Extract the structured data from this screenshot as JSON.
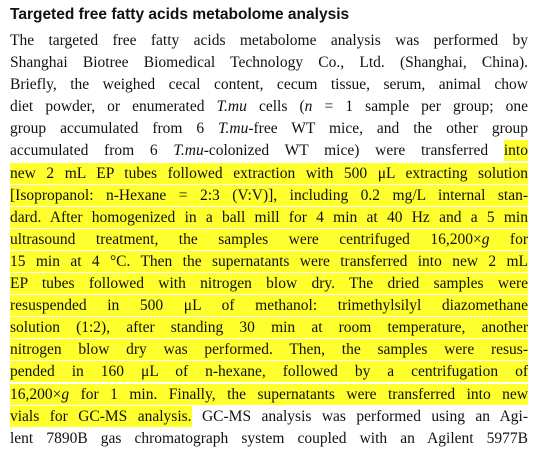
{
  "heading": "Targeted free fatty acids metabolome analysis",
  "lines": [
    [
      {
        "text": "The targeted free fatty acids metabolome analysis was performed by",
        "style": "plain"
      }
    ],
    [
      {
        "text": "Shanghai Biotree Biomedical Technology Co., Ltd. (Shanghai, China).",
        "style": "plain"
      }
    ],
    [
      {
        "text": "Briefly, the weighed cecal content, cecum tissue, serum, animal chow",
        "style": "plain"
      }
    ],
    [
      {
        "text": "diet powder, or enumerated ",
        "style": "plain"
      },
      {
        "text": "T.mu",
        "style": "italic"
      },
      {
        "text": " cells (",
        "style": "plain"
      },
      {
        "text": "n",
        "style": "italic"
      },
      {
        "text": " = 1 sample per group; one",
        "style": "plain"
      }
    ],
    [
      {
        "text": "group accumulated from 6 ",
        "style": "plain"
      },
      {
        "text": "T.mu",
        "style": "italic"
      },
      {
        "text": "-free WT mice, and the other group",
        "style": "plain"
      }
    ],
    [
      {
        "text": "accumulated from 6 ",
        "style": "plain"
      },
      {
        "text": "T.mu",
        "style": "italic"
      },
      {
        "text": "-colonized WT mice) were transferred ",
        "style": "plain"
      },
      {
        "text": "into",
        "style": "highlight"
      }
    ],
    [
      {
        "text": "new 2 mL EP tubes followed extraction with 500 μL extracting solution",
        "style": "highlight"
      }
    ],
    [
      {
        "text": "[Isopropanol: n-Hexane = 2:3 (V:V)], including 0.2 mg/L internal stan-",
        "style": "highlight"
      }
    ],
    [
      {
        "text": "dard. After homogenized in a ball mill for 4 min at 40 Hz and a 5 min",
        "style": "highlight"
      }
    ],
    [
      {
        "text": "ultrasound treatment, the samples were centrifuged 16,200×",
        "style": "highlight"
      },
      {
        "text": "g",
        "style": "highlight-italic"
      },
      {
        "text": " for",
        "style": "highlight"
      }
    ],
    [
      {
        "text": "15 min at 4 °C. Then the supernatants were transferred into new 2 mL",
        "style": "highlight"
      }
    ],
    [
      {
        "text": "EP tubes followed with nitrogen blow dry. The dried samples were",
        "style": "highlight"
      }
    ],
    [
      {
        "text": "resuspended in 500 μL of methanol: trimethylsilyl diazomethane",
        "style": "highlight"
      }
    ],
    [
      {
        "text": "solution (1:2), after standing 30 min at room temperature, another",
        "style": "highlight"
      }
    ],
    [
      {
        "text": "nitrogen blow dry was performed. Then, the samples were resus-",
        "style": "highlight"
      }
    ],
    [
      {
        "text": "pended in 160 μL of n-hexane, followed by a centrifugation of",
        "style": "highlight"
      }
    ],
    [
      {
        "text": "16,200×",
        "style": "highlight"
      },
      {
        "text": "g",
        "style": "highlight-italic"
      },
      {
        "text": " for 1 min. Finally, the supernatants were transferred into new",
        "style": "highlight"
      }
    ],
    [
      {
        "text": "vials for GC-MS analysis.",
        "style": "highlight"
      },
      {
        "text": " GC-MS analysis was performed using an Agi-",
        "style": "plain"
      }
    ],
    [
      {
        "text": "lent 7890B gas chromatograph system coupled with an Agilent 5977B",
        "style": "plain"
      }
    ]
  ]
}
